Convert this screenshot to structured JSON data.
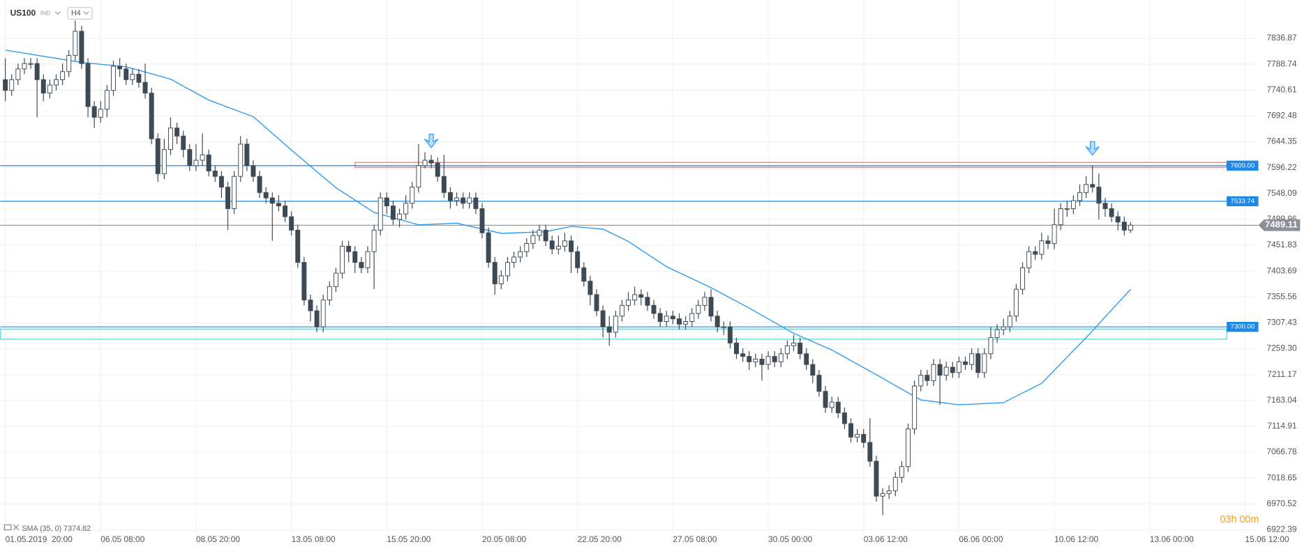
{
  "chart_data": {
    "type": "candlestick",
    "symbol": "US100",
    "market": "IND",
    "timeframe": "H4",
    "indicator_label": "SMA (35, 0) 7374.82",
    "countdown": "03h 00m",
    "xlim": [
      -0.8,
      196.7
    ],
    "ylim": [
      6886.7,
      7908.2
    ],
    "xticks": [
      {
        "value": 0,
        "label": "01.05.2019  20:00"
      },
      {
        "value": 15,
        "label": "06.05 08:00"
      },
      {
        "value": 30,
        "label": "08.05 20:00"
      },
      {
        "value": 45,
        "label": "13.05 08:00"
      },
      {
        "value": 60,
        "label": "15.05 20:00"
      },
      {
        "value": 75,
        "label": "20.05 08:00"
      },
      {
        "value": 90,
        "label": "22.05 20:00"
      },
      {
        "value": 105,
        "label": "27.05 08:00"
      },
      {
        "value": 120,
        "label": "30.05 00:00"
      },
      {
        "value": 135,
        "label": "03.06 12:00"
      },
      {
        "value": 150,
        "label": "06.06 00:00"
      },
      {
        "value": 165,
        "label": "10.06 12:00"
      },
      {
        "value": 180,
        "label": "13.06 00:00"
      },
      {
        "value": 195,
        "label": "15.06 12:00"
      }
    ],
    "yticks": [
      7836.87,
      7788.74,
      7740.61,
      7692.48,
      7644.35,
      7596.22,
      7548.09,
      7499.96,
      7451.83,
      7403.69,
      7355.56,
      7307.43,
      {
        "value": 7259.3,
        "label": "7259.30"
      },
      7211.17,
      7163.04,
      7114.91,
      7066.78,
      7018.65,
      6970.52,
      6922.39
    ],
    "grid": true,
    "up_color": "#ffffff",
    "down_color": "#3d4a55",
    "edge_color": "#3d4a55",
    "ohlc": [
      [
        7760,
        7800,
        7720,
        7740
      ],
      [
        7740,
        7770,
        7730,
        7760
      ],
      [
        7760,
        7790,
        7750,
        7780
      ],
      [
        7780,
        7800,
        7770,
        7790
      ],
      [
        7790,
        7800,
        7780,
        7790
      ],
      [
        7790,
        7800,
        7690,
        7760
      ],
      [
        7760,
        7770,
        7720,
        7735
      ],
      [
        7735,
        7760,
        7725,
        7750
      ],
      [
        7750,
        7770,
        7740,
        7760
      ],
      [
        7760,
        7790,
        7750,
        7775
      ],
      [
        7775,
        7815,
        7765,
        7805
      ],
      [
        7805,
        7870,
        7795,
        7850
      ],
      [
        7850,
        7860,
        7780,
        7790
      ],
      [
        7790,
        7800,
        7690,
        7710
      ],
      [
        7710,
        7720,
        7670,
        7690
      ],
      [
        7690,
        7720,
        7680,
        7705
      ],
      [
        7705,
        7750,
        7690,
        7740
      ],
      [
        7740,
        7795,
        7730,
        7785
      ],
      [
        7785,
        7800,
        7765,
        7780
      ],
      [
        7780,
        7790,
        7750,
        7760
      ],
      [
        7760,
        7780,
        7750,
        7770
      ],
      [
        7770,
        7780,
        7745,
        7755
      ],
      [
        7755,
        7790,
        7725,
        7735
      ],
      [
        7735,
        7745,
        7640,
        7650
      ],
      [
        7650,
        7660,
        7570,
        7585
      ],
      [
        7585,
        7650,
        7575,
        7630
      ],
      [
        7630,
        7690,
        7620,
        7670
      ],
      [
        7670,
        7680,
        7640,
        7655
      ],
      [
        7655,
        7665,
        7615,
        7630
      ],
      [
        7630,
        7640,
        7590,
        7600
      ],
      [
        7600,
        7640,
        7590,
        7610
      ],
      [
        7610,
        7660,
        7600,
        7620
      ],
      [
        7620,
        7630,
        7580,
        7590
      ],
      [
        7590,
        7600,
        7570,
        7580
      ],
      [
        7580,
        7590,
        7540,
        7560
      ],
      [
        7560,
        7570,
        7480,
        7520
      ],
      [
        7520,
        7590,
        7510,
        7580
      ],
      [
        7580,
        7655,
        7570,
        7640
      ],
      [
        7640,
        7650,
        7590,
        7600
      ],
      [
        7600,
        7610,
        7570,
        7580
      ],
      [
        7580,
        7590,
        7540,
        7550
      ],
      [
        7550,
        7560,
        7530,
        7540
      ],
      [
        7540,
        7550,
        7460,
        7530
      ],
      [
        7530,
        7545,
        7515,
        7525
      ],
      [
        7525,
        7535,
        7495,
        7505
      ],
      [
        7505,
        7515,
        7470,
        7480
      ],
      [
        7480,
        7490,
        7410,
        7420
      ],
      [
        7420,
        7430,
        7340,
        7350
      ],
      [
        7350,
        7360,
        7310,
        7330
      ],
      [
        7330,
        7340,
        7290,
        7300
      ],
      [
        7300,
        7360,
        7290,
        7350
      ],
      [
        7350,
        7385,
        7340,
        7375
      ],
      [
        7375,
        7410,
        7365,
        7400
      ],
      [
        7400,
        7460,
        7390,
        7450
      ],
      [
        7450,
        7460,
        7420,
        7440
      ],
      [
        7440,
        7450,
        7400,
        7420
      ],
      [
        7420,
        7430,
        7400,
        7410
      ],
      [
        7410,
        7450,
        7400,
        7440
      ],
      [
        7440,
        7490,
        7370,
        7480
      ],
      [
        7480,
        7550,
        7470,
        7540
      ],
      [
        7540,
        7550,
        7510,
        7525
      ],
      [
        7525,
        7535,
        7490,
        7500
      ],
      [
        7500,
        7520,
        7485,
        7510
      ],
      [
        7510,
        7545,
        7500,
        7530
      ],
      [
        7530,
        7570,
        7520,
        7560
      ],
      [
        7560,
        7640,
        7550,
        7600
      ],
      [
        7600,
        7625,
        7595,
        7610
      ],
      [
        7610,
        7620,
        7595,
        7605
      ],
      [
        7605,
        7615,
        7570,
        7580
      ],
      [
        7580,
        7620,
        7540,
        7550
      ],
      [
        7550,
        7560,
        7520,
        7535
      ],
      [
        7535,
        7550,
        7525,
        7540
      ],
      [
        7540,
        7550,
        7520,
        7530
      ],
      [
        7530,
        7550,
        7520,
        7540
      ],
      [
        7540,
        7550,
        7510,
        7520
      ],
      [
        7520,
        7530,
        7465,
        7475
      ],
      [
        7475,
        7485,
        7410,
        7420
      ],
      [
        7420,
        7430,
        7360,
        7380
      ],
      [
        7380,
        7405,
        7370,
        7395
      ],
      [
        7395,
        7430,
        7385,
        7420
      ],
      [
        7420,
        7440,
        7410,
        7430
      ],
      [
        7430,
        7450,
        7420,
        7440
      ],
      [
        7440,
        7465,
        7430,
        7455
      ],
      [
        7455,
        7480,
        7445,
        7470
      ],
      [
        7470,
        7490,
        7460,
        7480
      ],
      [
        7480,
        7490,
        7450,
        7460
      ],
      [
        7460,
        7470,
        7435,
        7445
      ],
      [
        7445,
        7470,
        7435,
        7450
      ],
      [
        7450,
        7475,
        7440,
        7460
      ],
      [
        7460,
        7470,
        7400,
        7440
      ],
      [
        7440,
        7450,
        7400,
        7410
      ],
      [
        7410,
        7420,
        7375,
        7385
      ],
      [
        7385,
        7395,
        7340,
        7360
      ],
      [
        7360,
        7370,
        7320,
        7330
      ],
      [
        7330,
        7340,
        7280,
        7300
      ],
      [
        7300,
        7320,
        7265,
        7290
      ],
      [
        7290,
        7330,
        7280,
        7320
      ],
      [
        7320,
        7350,
        7310,
        7340
      ],
      [
        7340,
        7365,
        7330,
        7350
      ],
      [
        7350,
        7375,
        7340,
        7360
      ],
      [
        7360,
        7370,
        7340,
        7355
      ],
      [
        7355,
        7365,
        7330,
        7340
      ],
      [
        7340,
        7350,
        7315,
        7325
      ],
      [
        7325,
        7335,
        7300,
        7310
      ],
      [
        7310,
        7330,
        7300,
        7320
      ],
      [
        7320,
        7330,
        7305,
        7315
      ],
      [
        7315,
        7325,
        7295,
        7305
      ],
      [
        7305,
        7320,
        7295,
        7310
      ],
      [
        7310,
        7335,
        7300,
        7325
      ],
      [
        7325,
        7350,
        7315,
        7340
      ],
      [
        7340,
        7365,
        7330,
        7355
      ],
      [
        7355,
        7370,
        7310,
        7320
      ],
      [
        7320,
        7330,
        7290,
        7300
      ],
      [
        7300,
        7310,
        7285,
        7300
      ],
      [
        7300,
        7310,
        7260,
        7270
      ],
      [
        7270,
        7280,
        7240,
        7250
      ],
      [
        7250,
        7260,
        7235,
        7245
      ],
      [
        7245,
        7255,
        7220,
        7235
      ],
      [
        7235,
        7250,
        7225,
        7240
      ],
      [
        7240,
        7250,
        7200,
        7230
      ],
      [
        7230,
        7255,
        7220,
        7245
      ],
      [
        7245,
        7255,
        7225,
        7235
      ],
      [
        7235,
        7260,
        7225,
        7250
      ],
      [
        7250,
        7275,
        7240,
        7265
      ],
      [
        7265,
        7285,
        7255,
        7270
      ],
      [
        7270,
        7280,
        7240,
        7250
      ],
      [
        7250,
        7260,
        7220,
        7230
      ],
      [
        7230,
        7240,
        7195,
        7210
      ],
      [
        7210,
        7220,
        7170,
        7180
      ],
      [
        7180,
        7190,
        7140,
        7150
      ],
      [
        7150,
        7170,
        7140,
        7160
      ],
      [
        7160,
        7170,
        7130,
        7140
      ],
      [
        7140,
        7150,
        7110,
        7120
      ],
      [
        7120,
        7130,
        7085,
        7095
      ],
      [
        7095,
        7110,
        7085,
        7100
      ],
      [
        7100,
        7110,
        7075,
        7085
      ],
      [
        7085,
        7130,
        7040,
        7050
      ],
      [
        7050,
        7060,
        6975,
        6985
      ],
      [
        6985,
        7000,
        6950,
        6990
      ],
      [
        6990,
        7005,
        6980,
        6995
      ],
      [
        6995,
        7030,
        6985,
        7020
      ],
      [
        7020,
        7050,
        7010,
        7040
      ],
      [
        7040,
        7120,
        7030,
        7110
      ],
      [
        7110,
        7200,
        7100,
        7190
      ],
      [
        7190,
        7220,
        7180,
        7210
      ],
      [
        7210,
        7220,
        7190,
        7200
      ],
      [
        7200,
        7240,
        7190,
        7230
      ],
      [
        7230,
        7240,
        7155,
        7210
      ],
      [
        7210,
        7235,
        7200,
        7225
      ],
      [
        7225,
        7235,
        7205,
        7215
      ],
      [
        7215,
        7245,
        7205,
        7235
      ],
      [
        7235,
        7245,
        7220,
        7230
      ],
      [
        7230,
        7260,
        7220,
        7250
      ],
      [
        7250,
        7260,
        7205,
        7215
      ],
      [
        7215,
        7260,
        7205,
        7250
      ],
      [
        7250,
        7300,
        7240,
        7280
      ],
      [
        7280,
        7305,
        7270,
        7295
      ],
      [
        7295,
        7315,
        7285,
        7300
      ],
      [
        7300,
        7330,
        7290,
        7320
      ],
      [
        7320,
        7380,
        7310,
        7370
      ],
      [
        7370,
        7420,
        7360,
        7410
      ],
      [
        7410,
        7450,
        7400,
        7440
      ],
      [
        7440,
        7450,
        7425,
        7435
      ],
      [
        7435,
        7475,
        7425,
        7460
      ],
      [
        7460,
        7470,
        7445,
        7455
      ],
      [
        7455,
        7520,
        7445,
        7490
      ],
      [
        7490,
        7530,
        7480,
        7520
      ],
      [
        7520,
        7535,
        7505,
        7520
      ],
      [
        7520,
        7545,
        7510,
        7535
      ],
      [
        7535,
        7565,
        7525,
        7550
      ],
      [
        7550,
        7580,
        7540,
        7565
      ],
      [
        7565,
        7600,
        7550,
        7560
      ],
      [
        7560,
        7585,
        7500,
        7530
      ],
      [
        7530,
        7540,
        7505,
        7520
      ],
      [
        7520,
        7530,
        7495,
        7505
      ],
      [
        7505,
        7515,
        7480,
        7495
      ],
      [
        7495,
        7505,
        7470,
        7480
      ],
      [
        7480,
        7495,
        7475,
        7489.11
      ]
    ],
    "sma": {
      "color": "#2196f3",
      "x": [
        0,
        12,
        19,
        26,
        32,
        39,
        45,
        52,
        58,
        65,
        71,
        78,
        85,
        89,
        94,
        98,
        104,
        111,
        117,
        124,
        130,
        137,
        144,
        150,
        157,
        163,
        170,
        177
      ],
      "values": [
        7815,
        7792,
        7784,
        7761,
        7722,
        7691,
        7629,
        7559,
        7513,
        7490,
        7493,
        7474,
        7477,
        7487,
        7482,
        7459,
        7412,
        7373,
        7335,
        7288,
        7257,
        7211,
        7164,
        7155,
        7159,
        7195,
        7280,
        7370
      ]
    },
    "levels": [
      {
        "value": 7600,
        "label": "7600.00",
        "color": "#1e88e5"
      },
      {
        "value": 7533.74,
        "label": "7533.74",
        "color": "#1e88e5"
      },
      {
        "value": 7300,
        "label": "7300.00",
        "color": "#1e88e5"
      }
    ],
    "zones": [
      {
        "from_x": 55,
        "low": 7597,
        "high": 7606,
        "color": "#e57373"
      },
      {
        "from_x": -0.8,
        "low": 7277,
        "high": 7296,
        "color": "#4dd0e1"
      }
    ],
    "arrows": [
      {
        "x": 67,
        "y": 7640
      },
      {
        "x": 171,
        "y": 7626
      }
    ],
    "arrow_color": "#42a5f5",
    "last_price": 7489.11,
    "last_price_color": "#8a9097"
  }
}
